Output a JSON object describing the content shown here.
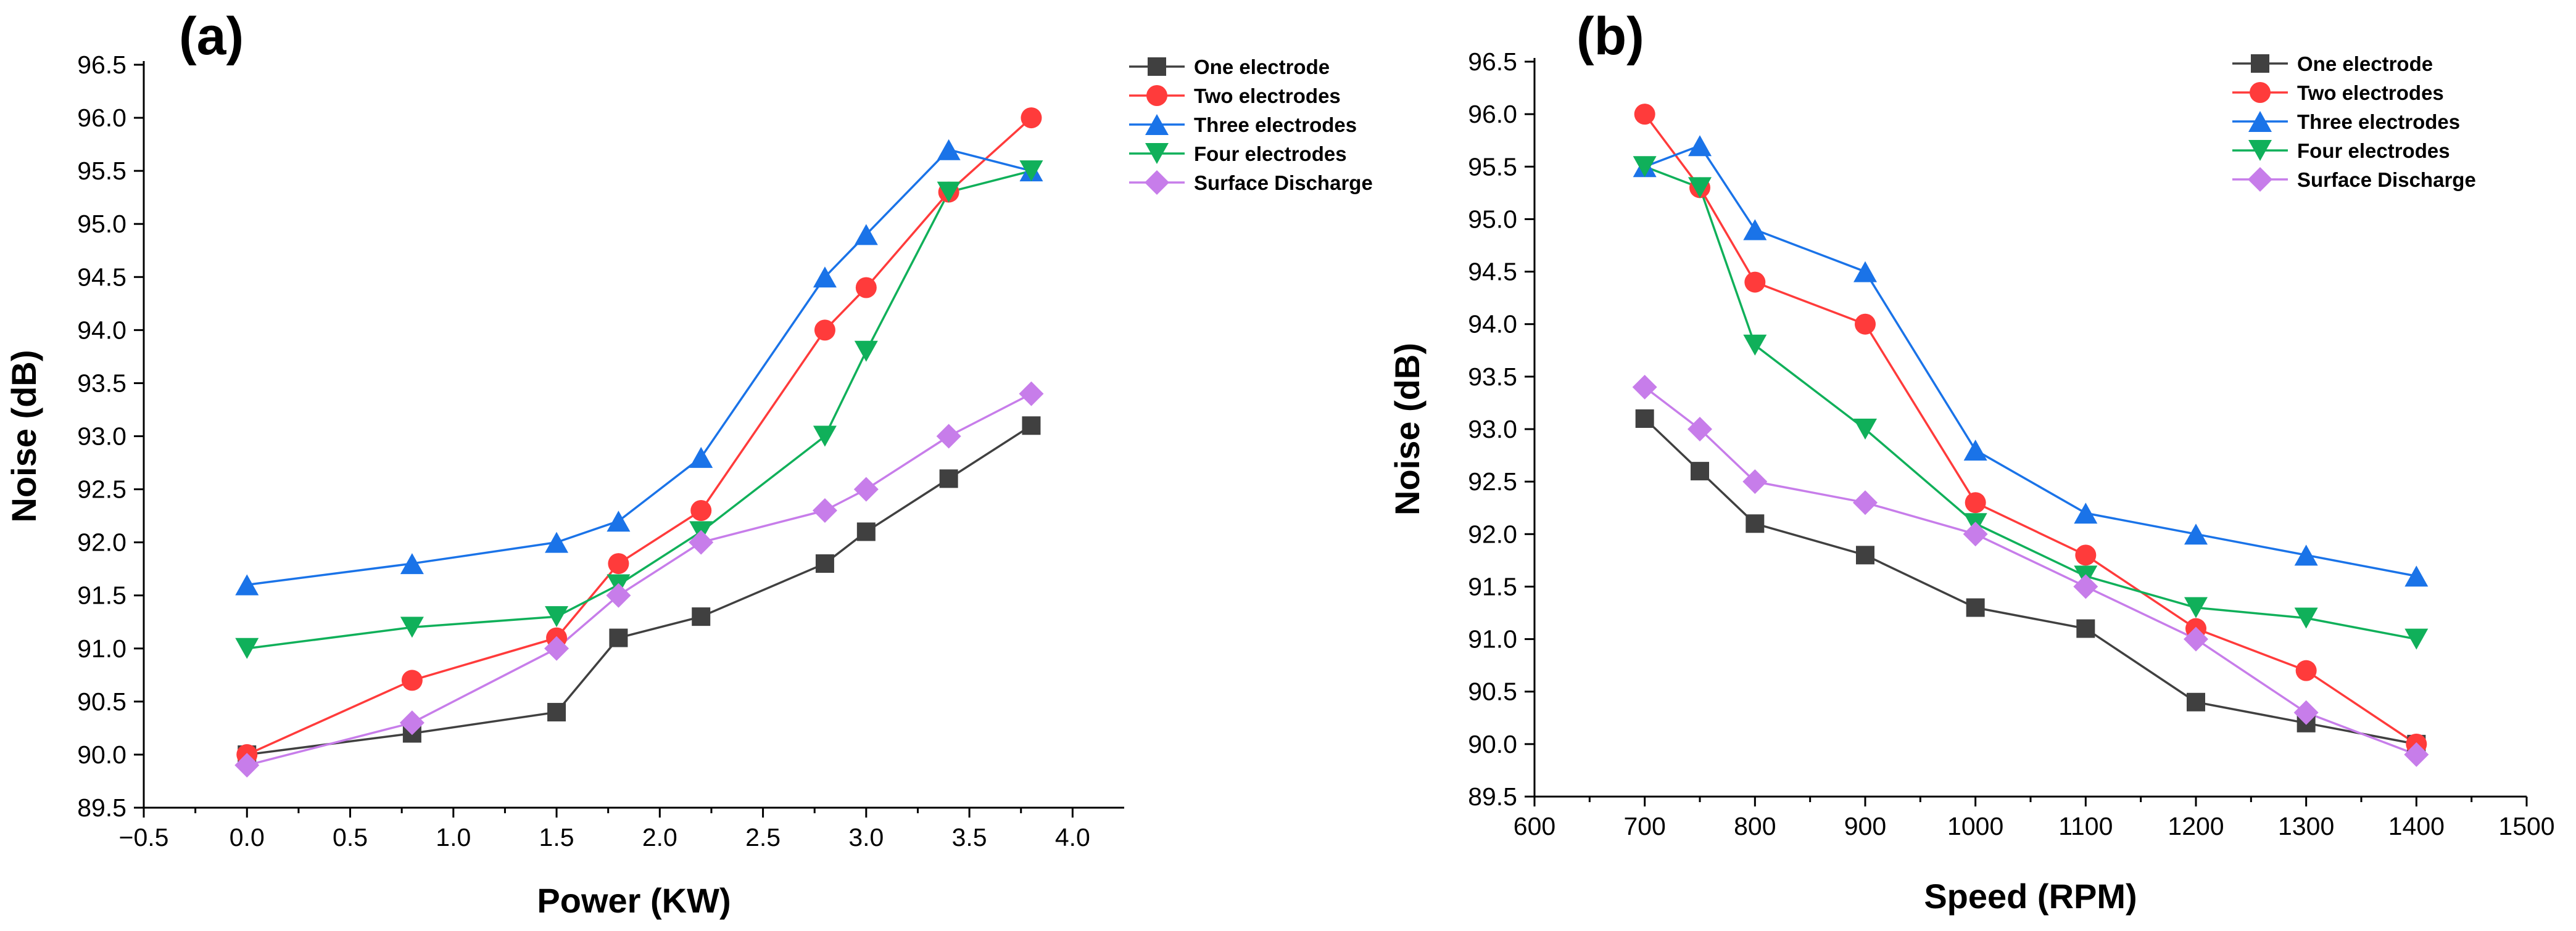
{
  "chart_data": [
    {
      "type": "line",
      "panel_label": "(a)",
      "title": "",
      "xlabel": "Power (KW)",
      "ylabel": "Noise (dB)",
      "xlim": [
        -0.5,
        4.25
      ],
      "ylim": [
        89.5,
        96.5
      ],
      "xticks": [
        -0.5,
        0.0,
        0.5,
        1.0,
        1.5,
        2.0,
        2.5,
        3.0,
        3.5,
        4.0
      ],
      "xtick_labels": [
        "−0.5",
        "0.0",
        "0.5",
        "1.0",
        "1.5",
        "2.0",
        "2.5",
        "3.0",
        "3.5",
        "4.0"
      ],
      "yticks": [
        89.5,
        90.0,
        90.5,
        91.0,
        91.5,
        92.0,
        92.5,
        93.0,
        93.5,
        94.0,
        94.5,
        95.0,
        95.5,
        96.0,
        96.5
      ],
      "ytick_labels": [
        "89.5",
        "90.0",
        "90.5",
        "91.0",
        "91.5",
        "92.0",
        "92.5",
        "93.0",
        "93.5",
        "94.0",
        "94.5",
        "95.0",
        "95.5",
        "96.0",
        "96.5"
      ],
      "grid": false,
      "legend_position": "top-right",
      "series": [
        {
          "name": "One electrode",
          "color": "#404040",
          "marker": "square",
          "x": [
            0,
            0.8,
            1.5,
            1.8,
            2.2,
            2.8,
            3.0,
            3.4,
            3.8
          ],
          "y": [
            90.0,
            90.2,
            90.4,
            91.1,
            91.3,
            91.8,
            92.1,
            92.6,
            93.1
          ]
        },
        {
          "name": "Two electrodes",
          "color": "#ff3b3b",
          "marker": "circle",
          "x": [
            0,
            0.8,
            1.5,
            1.8,
            2.2,
            2.8,
            3.0,
            3.4,
            3.8
          ],
          "y": [
            90.0,
            90.7,
            91.1,
            91.8,
            92.3,
            94.0,
            94.4,
            95.3,
            96.0
          ]
        },
        {
          "name": "Three electrodes",
          "color": "#1a73e8",
          "marker": "triangle-up",
          "x": [
            0,
            0.8,
            1.5,
            1.8,
            2.2,
            2.8,
            3.0,
            3.4,
            3.8
          ],
          "y": [
            91.6,
            91.8,
            92.0,
            92.2,
            92.8,
            94.5,
            94.9,
            95.7,
            95.5
          ]
        },
        {
          "name": "Four electrodes",
          "color": "#10b05a",
          "marker": "triangle-down",
          "x": [
            0,
            0.8,
            1.5,
            1.8,
            2.2,
            2.8,
            3.0,
            3.4,
            3.8
          ],
          "y": [
            91.0,
            91.2,
            91.3,
            91.6,
            92.1,
            93.0,
            93.8,
            95.3,
            95.5
          ]
        },
        {
          "name": "Surface Discharge",
          "color": "#c77dea",
          "marker": "diamond",
          "x": [
            0,
            0.8,
            1.5,
            1.8,
            2.2,
            2.8,
            3.0,
            3.4,
            3.8
          ],
          "y": [
            89.9,
            90.3,
            91.0,
            91.5,
            92.0,
            92.3,
            92.5,
            93.0,
            93.4
          ]
        }
      ]
    },
    {
      "type": "line",
      "panel_label": "(b)",
      "title": "",
      "xlabel": "Speed (RPM)",
      "ylabel": "Noise (dB)",
      "xlim": [
        600,
        1500
      ],
      "ylim": [
        89.5,
        96.5
      ],
      "xticks": [
        600,
        700,
        800,
        900,
        1000,
        1100,
        1200,
        1300,
        1400,
        1500
      ],
      "xtick_labels": [
        "600",
        "700",
        "800",
        "900",
        "1000",
        "1100",
        "1200",
        "1300",
        "1400",
        "1500"
      ],
      "yticks": [
        89.5,
        90.0,
        90.5,
        91.0,
        91.5,
        92.0,
        92.5,
        93.0,
        93.5,
        94.0,
        94.5,
        95.0,
        95.5,
        96.0,
        96.5
      ],
      "ytick_labels": [
        "89.5",
        "90.0",
        "90.5",
        "91.0",
        "91.5",
        "92.0",
        "92.5",
        "93.0",
        "93.5",
        "94.0",
        "94.5",
        "95.0",
        "95.5",
        "96.0",
        "96.5"
      ],
      "grid": false,
      "legend_position": "top-right",
      "series": [
        {
          "name": "One electrode",
          "color": "#404040",
          "marker": "square",
          "x": [
            700,
            750,
            800,
            900,
            1000,
            1100,
            1200,
            1300,
            1400
          ],
          "y": [
            93.1,
            92.6,
            92.1,
            91.8,
            91.3,
            91.1,
            90.4,
            90.2,
            90.0
          ]
        },
        {
          "name": "Two electrodes",
          "color": "#ff3b3b",
          "marker": "circle",
          "x": [
            700,
            750,
            800,
            900,
            1000,
            1100,
            1200,
            1300,
            1400
          ],
          "y": [
            96.0,
            95.3,
            94.4,
            94.0,
            92.3,
            91.8,
            91.1,
            90.7,
            90.0
          ]
        },
        {
          "name": "Three electrodes",
          "color": "#1a73e8",
          "marker": "triangle-up",
          "x": [
            700,
            750,
            800,
            900,
            1000,
            1100,
            1200,
            1300,
            1400
          ],
          "y": [
            95.5,
            95.7,
            94.9,
            94.5,
            92.8,
            92.2,
            92.0,
            91.8,
            91.6
          ]
        },
        {
          "name": "Four electrodes",
          "color": "#10b05a",
          "marker": "triangle-down",
          "x": [
            700,
            750,
            800,
            900,
            1000,
            1100,
            1200,
            1300,
            1400
          ],
          "y": [
            95.5,
            95.3,
            93.8,
            93.0,
            92.1,
            91.6,
            91.3,
            91.2,
            91.0
          ]
        },
        {
          "name": "Surface Discharge",
          "color": "#c77dea",
          "marker": "diamond",
          "x": [
            700,
            750,
            800,
            900,
            1000,
            1100,
            1200,
            1300,
            1400
          ],
          "y": [
            93.4,
            93.0,
            92.5,
            92.3,
            92.0,
            91.5,
            91.0,
            90.3,
            89.9
          ]
        }
      ]
    }
  ]
}
